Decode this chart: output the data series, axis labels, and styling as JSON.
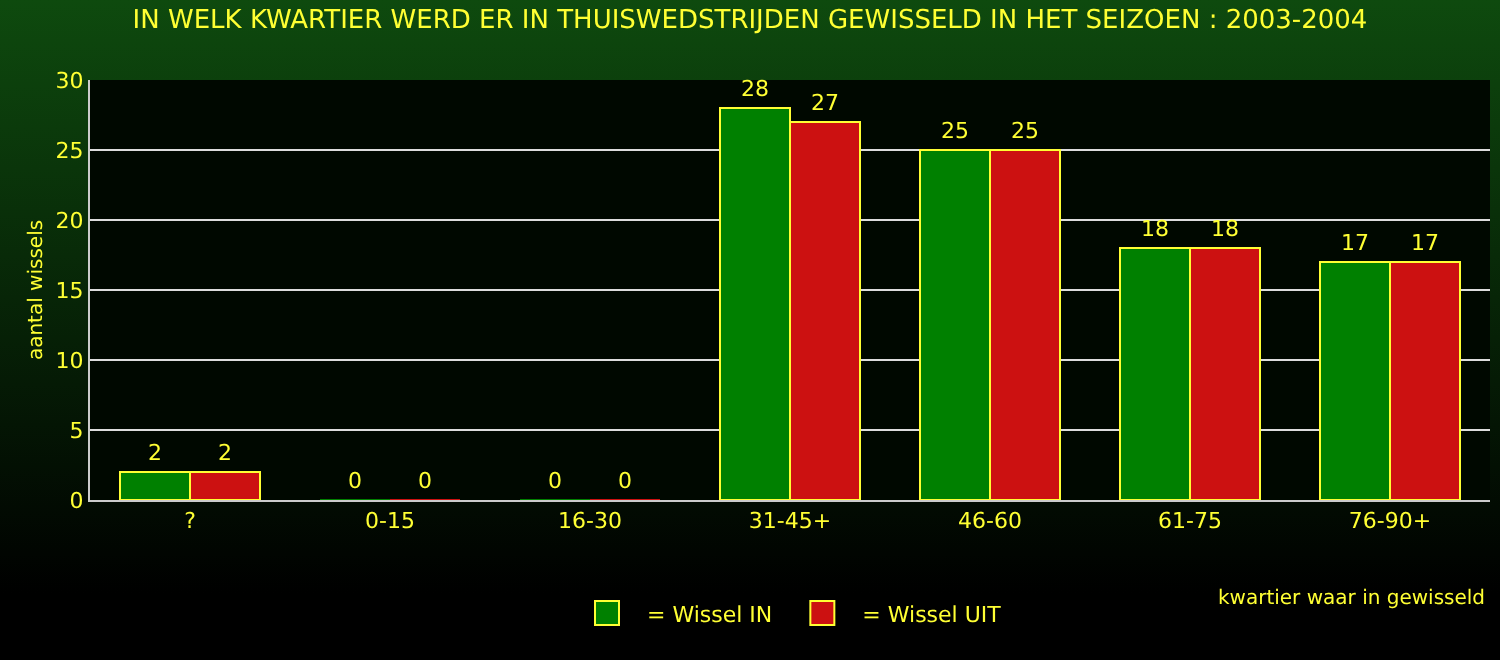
{
  "chart_data": {
    "type": "bar",
    "title": "IN WELK KWARTIER WERD ER IN THUISWEDSTRIJDEN GEWISSELD IN HET SEIZOEN : 2003-2004",
    "xlabel": "kwartier waar in gewisseld",
    "ylabel": "aantal wissels",
    "categories": [
      "?",
      "0-15",
      "16-30",
      "31-45+",
      "46-60",
      "61-75",
      "76-90+"
    ],
    "series": [
      {
        "name": "= Wissel IN",
        "color": "#008000",
        "values": [
          2,
          0,
          0,
          28,
          25,
          18,
          17
        ]
      },
      {
        "name": "= Wissel UIT",
        "color": "#cc1111",
        "values": [
          2,
          0,
          0,
          27,
          25,
          18,
          17
        ]
      }
    ],
    "ylim": [
      0,
      30
    ],
    "yticks": [
      0,
      5,
      10,
      15,
      20,
      25,
      30
    ],
    "grid": "y",
    "legend": "bottom",
    "data_labels": true
  }
}
